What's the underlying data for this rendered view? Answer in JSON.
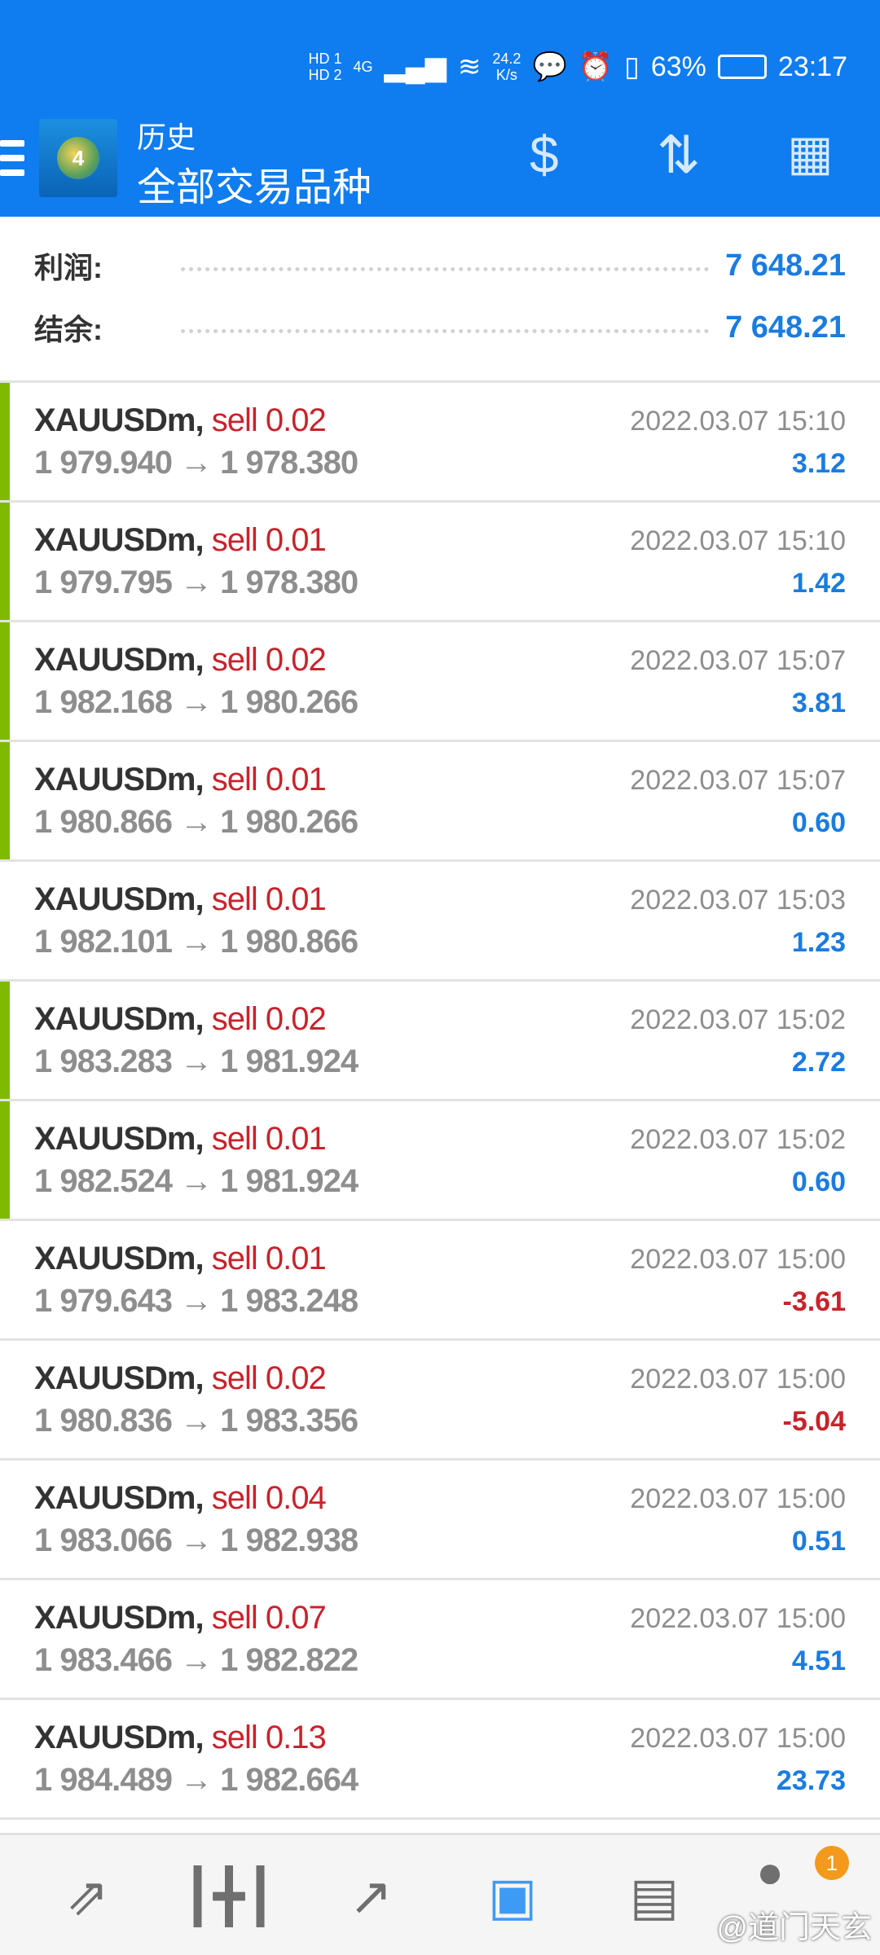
{
  "status_bar": {
    "network_speed": "24.2",
    "network_unit": "K/s",
    "battery": "63%",
    "time": "23:17",
    "sim1": "HD 1",
    "sim2": "HD 2",
    "signal": "4G"
  },
  "header": {
    "title": "历史",
    "subtitle": "全部交易品种",
    "icons": [
      "menu-icon",
      "currency-exchange-icon",
      "sort-icon",
      "calendar-icon"
    ]
  },
  "summary": {
    "profit_label": "利润:",
    "profit_value": "7 648.21",
    "balance_label": "结余:",
    "balance_value": "7 648.21"
  },
  "colors": {
    "accent": "#0f7cf0",
    "positive": "#1a7ce0",
    "negative": "#c8232c",
    "sell": "#c8232c",
    "marker": "#7fba00"
  },
  "deals": [
    {
      "symbol": "XAUUSDm,",
      "side": "sell 0.02",
      "prices": "1 979.940 → 1 978.380",
      "time": "2022.03.07 15:10",
      "profit": "3.12",
      "marked": true
    },
    {
      "symbol": "XAUUSDm,",
      "side": "sell 0.01",
      "prices": "1 979.795 → 1 978.380",
      "time": "2022.03.07 15:10",
      "profit": "1.42",
      "marked": true
    },
    {
      "symbol": "XAUUSDm,",
      "side": "sell 0.02",
      "prices": "1 982.168 → 1 980.266",
      "time": "2022.03.07 15:07",
      "profit": "3.81",
      "marked": true
    },
    {
      "symbol": "XAUUSDm,",
      "side": "sell 0.01",
      "prices": "1 980.866 → 1 980.266",
      "time": "2022.03.07 15:07",
      "profit": "0.60",
      "marked": true
    },
    {
      "symbol": "XAUUSDm,",
      "side": "sell 0.01",
      "prices": "1 982.101 → 1 980.866",
      "time": "2022.03.07 15:03",
      "profit": "1.23",
      "marked": false
    },
    {
      "symbol": "XAUUSDm,",
      "side": "sell 0.02",
      "prices": "1 983.283 → 1 981.924",
      "time": "2022.03.07 15:02",
      "profit": "2.72",
      "marked": true
    },
    {
      "symbol": "XAUUSDm,",
      "side": "sell 0.01",
      "prices": "1 982.524 → 1 981.924",
      "time": "2022.03.07 15:02",
      "profit": "0.60",
      "marked": true
    },
    {
      "symbol": "XAUUSDm,",
      "side": "sell 0.01",
      "prices": "1 979.643 → 1 983.248",
      "time": "2022.03.07 15:00",
      "profit": "-3.61",
      "marked": false
    },
    {
      "symbol": "XAUUSDm,",
      "side": "sell 0.02",
      "prices": "1 980.836 → 1 983.356",
      "time": "2022.03.07 15:00",
      "profit": "-5.04",
      "marked": false
    },
    {
      "symbol": "XAUUSDm,",
      "side": "sell 0.04",
      "prices": "1 983.066 → 1 982.938",
      "time": "2022.03.07 15:00",
      "profit": "0.51",
      "marked": false
    },
    {
      "symbol": "XAUUSDm,",
      "side": "sell 0.07",
      "prices": "1 983.466 → 1 982.822",
      "time": "2022.03.07 15:00",
      "profit": "4.51",
      "marked": false
    },
    {
      "symbol": "XAUUSDm,",
      "side": "sell 0.13",
      "prices": "1 984.489 → 1 982.664",
      "time": "2022.03.07 15:00",
      "profit": "23.73",
      "marked": false
    }
  ],
  "bottom_nav": {
    "items": [
      "quotes-icon",
      "chart-icon",
      "trade-icon",
      "history-icon",
      "news-icon",
      "chat-icon"
    ],
    "active": "history-icon",
    "chat_badge": "1"
  },
  "watermark": "@道门天玄"
}
